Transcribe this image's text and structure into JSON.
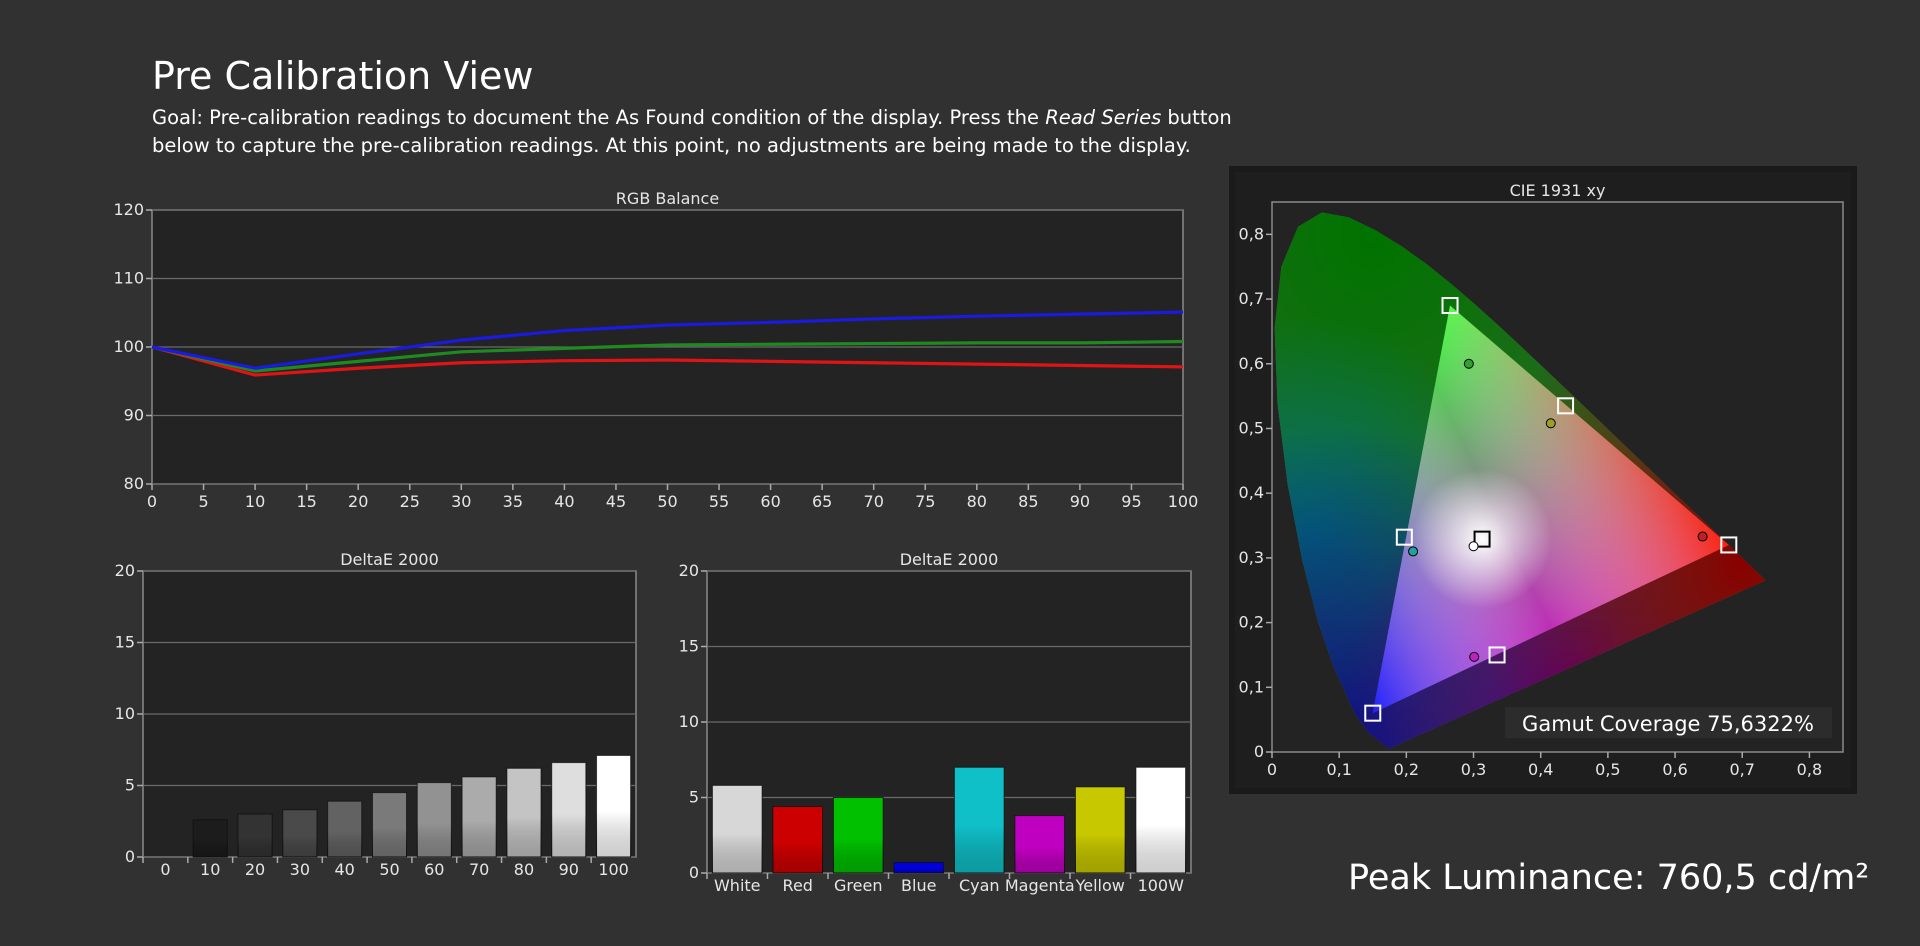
{
  "header": {
    "title": "Pre Calibration View",
    "goal_part1": "Goal: Pre-calibration readings to document the As Found condition of the display. Press the ",
    "goal_em": "Read Series",
    "goal_part2": " button below to capture the pre-calibration readings. At this point, no adjustments are being made to the display."
  },
  "peak_luminance": "Peak Luminance: 760,5 cd/m²",
  "colors": {
    "background": "#313131",
    "plot_bg": "#232323",
    "red": "#e01414",
    "green": "#1f8a1f",
    "blue": "#1a1ae0"
  },
  "chart_data": [
    {
      "id": "rgb-balance",
      "type": "line",
      "title": "RGB Balance",
      "x": [
        0,
        10,
        20,
        30,
        40,
        50,
        60,
        70,
        80,
        90,
        100
      ],
      "xticks": [
        "0",
        "5",
        "10",
        "15",
        "20",
        "25",
        "30",
        "35",
        "40",
        "45",
        "50",
        "55",
        "60",
        "65",
        "70",
        "75",
        "80",
        "85",
        "90",
        "95",
        "100"
      ],
      "xlim": [
        0,
        100
      ],
      "ylim": [
        80,
        120
      ],
      "yticks": [
        "80",
        "90",
        "100",
        "110",
        "120"
      ],
      "grid": true,
      "series": [
        {
          "color": "#e01414",
          "values": [
            100,
            95.9,
            96.9,
            97.7,
            98.0,
            98.1,
            97.9,
            97.7,
            97.5,
            97.3,
            97.1
          ]
        },
        {
          "color": "#1f8a1f",
          "values": [
            100,
            96.5,
            97.9,
            99.3,
            99.8,
            100.3,
            100.4,
            100.5,
            100.6,
            100.6,
            100.8
          ]
        },
        {
          "color": "#1a1ae0",
          "values": [
            100,
            96.9,
            99.0,
            101.0,
            102.4,
            103.2,
            103.6,
            104.1,
            104.5,
            104.8,
            105.1
          ]
        }
      ]
    },
    {
      "id": "deltae-grayscale",
      "type": "bar",
      "title": "DeltaE 2000",
      "categories": [
        "0",
        "10",
        "20",
        "30",
        "40",
        "50",
        "60",
        "70",
        "80",
        "90",
        "100"
      ],
      "values": [
        0,
        2.6,
        3.0,
        3.3,
        3.9,
        4.5,
        5.2,
        5.6,
        6.2,
        6.6,
        7.1
      ],
      "colors": [
        "#000000",
        "#1c1c1c",
        "#333333",
        "#4a4a4a",
        "#626262",
        "#7a7a7a",
        "#929292",
        "#ababab",
        "#c4c4c4",
        "#dedede",
        "#ffffff"
      ],
      "ylim": [
        0,
        20
      ],
      "yticks": [
        "0",
        "5",
        "10",
        "15",
        "20"
      ],
      "grid": true
    },
    {
      "id": "deltae-colors",
      "type": "bar",
      "title": "DeltaE 2000",
      "categories": [
        "White",
        "Red",
        "Green",
        "Blue",
        "Cyan",
        "Magenta",
        "Yellow",
        "100W"
      ],
      "values": [
        5.8,
        4.4,
        5.0,
        0.7,
        7.0,
        3.8,
        5.7,
        7.0
      ],
      "colors": [
        "#d7d7d7",
        "#cc0000",
        "#00c000",
        "#0000d8",
        "#10c0c8",
        "#c000c0",
        "#c8c800",
        "#ffffff"
      ],
      "ylim": [
        0,
        20
      ],
      "yticks": [
        "0",
        "5",
        "10",
        "15",
        "20"
      ],
      "grid": true
    },
    {
      "id": "cie-1931",
      "type": "scatter",
      "title": "CIE 1931 xy",
      "xlim": [
        0,
        0.85
      ],
      "ylim": [
        0,
        0.85
      ],
      "xticks": [
        "0",
        "0,1",
        "0,2",
        "0,3",
        "0,4",
        "0,5",
        "0,6",
        "0,7",
        "0,8"
      ],
      "yticks": [
        "0",
        "0,1",
        "0,2",
        "0,3",
        "0,4",
        "0,5",
        "0,6",
        "0,7",
        "0,8"
      ],
      "targets": [
        {
          "x": 0.265,
          "y": 0.69
        },
        {
          "x": 0.437,
          "y": 0.535
        },
        {
          "x": 0.68,
          "y": 0.32
        },
        {
          "x": 0.335,
          "y": 0.15
        },
        {
          "x": 0.197,
          "y": 0.332
        },
        {
          "x": 0.15,
          "y": 0.06
        },
        {
          "x": 0.3127,
          "y": 0.329
        }
      ],
      "measured": [
        {
          "x": 0.293,
          "y": 0.6,
          "color": "#30a030"
        },
        {
          "x": 0.415,
          "y": 0.508,
          "color": "#a0a020"
        },
        {
          "x": 0.641,
          "y": 0.333,
          "color": "#c02020"
        },
        {
          "x": 0.301,
          "y": 0.147,
          "color": "#c020c0"
        },
        {
          "x": 0.21,
          "y": 0.31,
          "color": "#20a0a0"
        },
        {
          "x": 0.3,
          "y": 0.318,
          "color": "#ffffff"
        }
      ],
      "gamut_coverage": "Gamut Coverage 75,6322%"
    }
  ]
}
